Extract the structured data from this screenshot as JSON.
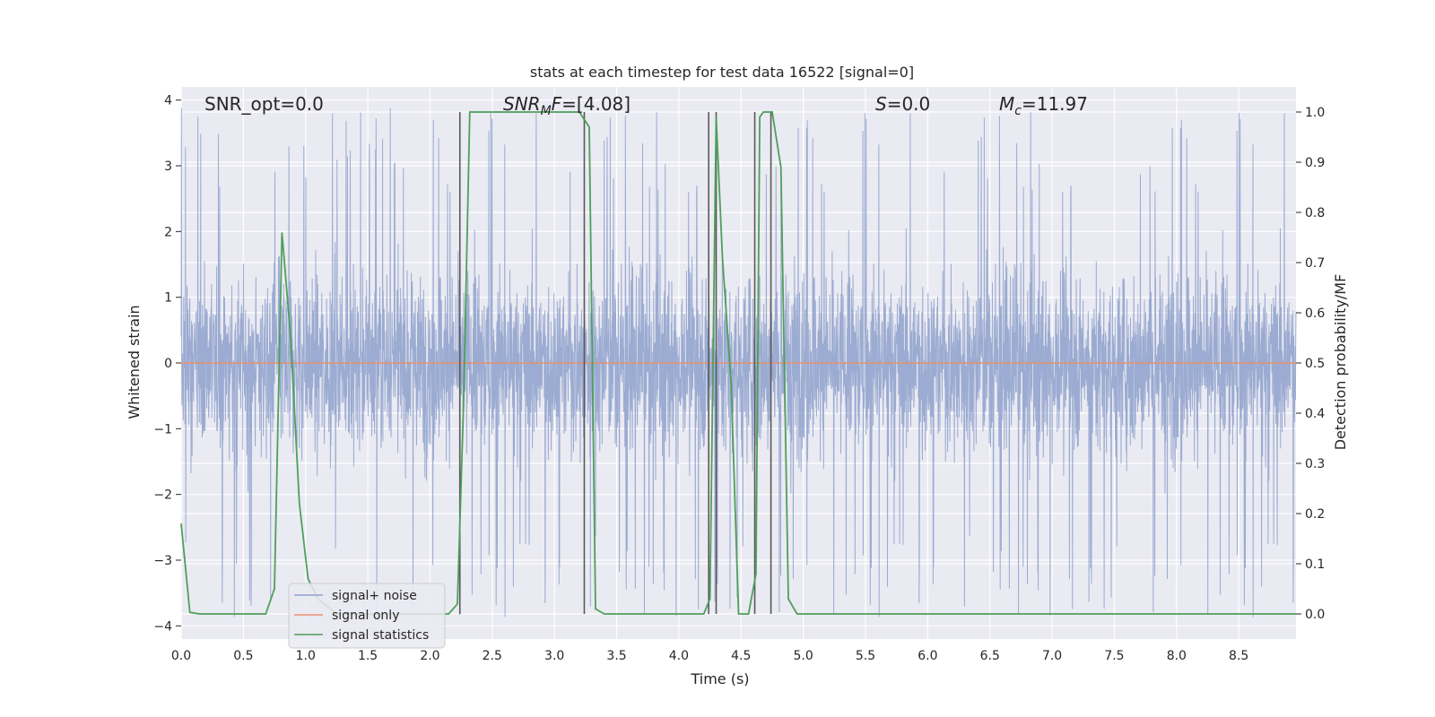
{
  "chart_data": {
    "type": "line",
    "title": "stats at each timestep for test data 16522 [signal=0]",
    "xlabel": "Time (s)",
    "ylabel": "Whitened strain",
    "y2label": "Detection probability/MF",
    "xlim": [
      0,
      8.96
    ],
    "ylim": [
      -4.2,
      4.2
    ],
    "y2lim": [
      -0.05,
      1.05
    ],
    "xticks": [
      "0.0",
      "0.5",
      "1.0",
      "1.5",
      "2.0",
      "2.5",
      "3.0",
      "3.5",
      "4.0",
      "4.5",
      "5.0",
      "5.5",
      "6.0",
      "6.5",
      "7.0",
      "7.5",
      "8.0",
      "8.5"
    ],
    "xtick_values": [
      0,
      0.5,
      1,
      1.5,
      2,
      2.5,
      3,
      3.5,
      4,
      4.5,
      5,
      5.5,
      6,
      6.5,
      7,
      7.5,
      8,
      8.5
    ],
    "yticks": [
      "−4",
      "−3",
      "−2",
      "−1",
      "0",
      "1",
      "2",
      "3",
      "4"
    ],
    "ytick_values": [
      -4,
      -3,
      -2,
      -1,
      0,
      1,
      2,
      3,
      4
    ],
    "y2ticks": [
      "0.0",
      "0.1",
      "0.2",
      "0.3",
      "0.4",
      "0.5",
      "0.6",
      "0.7",
      "0.8",
      "0.9",
      "1.0"
    ],
    "y2tick_values": [
      0,
      0.1,
      0.2,
      0.3,
      0.4,
      0.5,
      0.6,
      0.7,
      0.8,
      0.9,
      1.0
    ],
    "grid": true,
    "legend_placement": "lower-left",
    "colors": {
      "noise": "#8da0cb",
      "signal_only": "#e6906e",
      "statistics": "#4e9f5b",
      "vlines": "#595959",
      "background": "#eaeaf2",
      "grid": "#ffffff"
    },
    "annotations": {
      "snr_opt": "SNR_opt=0.0",
      "snr_mf_main": "SNR",
      "snr_mf_sub": "M",
      "snr_mf_italic": "F",
      "snr_mf_value": "=[4.08]",
      "s_italic": "S",
      "s_value": "=0.0",
      "mc_main": "M",
      "mc_sub": "c",
      "mc_value": "=11.97"
    },
    "series": [
      {
        "name": "signal+ noise",
        "description": "whitened noise, amplitude ~±2.5 with spikes to ~±4"
      },
      {
        "name": "signal only",
        "x": [
          0,
          8.96
        ],
        "y": [
          0,
          0
        ]
      },
      {
        "name": "signal statistics",
        "axis": "right",
        "x": [
          0,
          0.07,
          0.15,
          0.38,
          0.48,
          0.58,
          0.68,
          0.75,
          0.81,
          0.88,
          0.95,
          1.02,
          1.1,
          1.15,
          1.2,
          1.25,
          1.5,
          1.75,
          2.0,
          2.15,
          2.22,
          2.27,
          2.32,
          2.4,
          2.6,
          2.9,
          3.2,
          3.28,
          3.33,
          3.4,
          3.6,
          3.9,
          4.1,
          4.2,
          4.25,
          4.3,
          4.35,
          4.42,
          4.48,
          4.56,
          4.62,
          4.65,
          4.68,
          4.75,
          4.82,
          4.88,
          4.95,
          5.1,
          5.5,
          6,
          6.5,
          7,
          7.5,
          8,
          8.5,
          8.96
        ],
        "y": [
          0.18,
          0.003,
          0,
          0,
          0,
          0,
          0,
          0.05,
          0.76,
          0.55,
          0.22,
          0.07,
          0.03,
          0.02,
          0.01,
          0,
          0,
          0,
          0,
          0,
          0.02,
          0.42,
          1.0,
          1.0,
          1.0,
          1.0,
          1.0,
          0.97,
          0.01,
          0,
          0,
          0,
          0,
          0,
          0.03,
          0.99,
          0.71,
          0.46,
          0,
          0,
          0.08,
          0.99,
          1.0,
          1.0,
          0.89,
          0.03,
          0,
          0,
          0,
          0,
          0,
          0,
          0,
          0,
          0,
          0
        ]
      },
      {
        "name": "vertical markers",
        "x": [
          2.24,
          3.24,
          4.24,
          4.3,
          4.61,
          4.74
        ]
      }
    ],
    "legend": [
      "signal+ noise",
      "signal only",
      "signal statistics"
    ]
  }
}
